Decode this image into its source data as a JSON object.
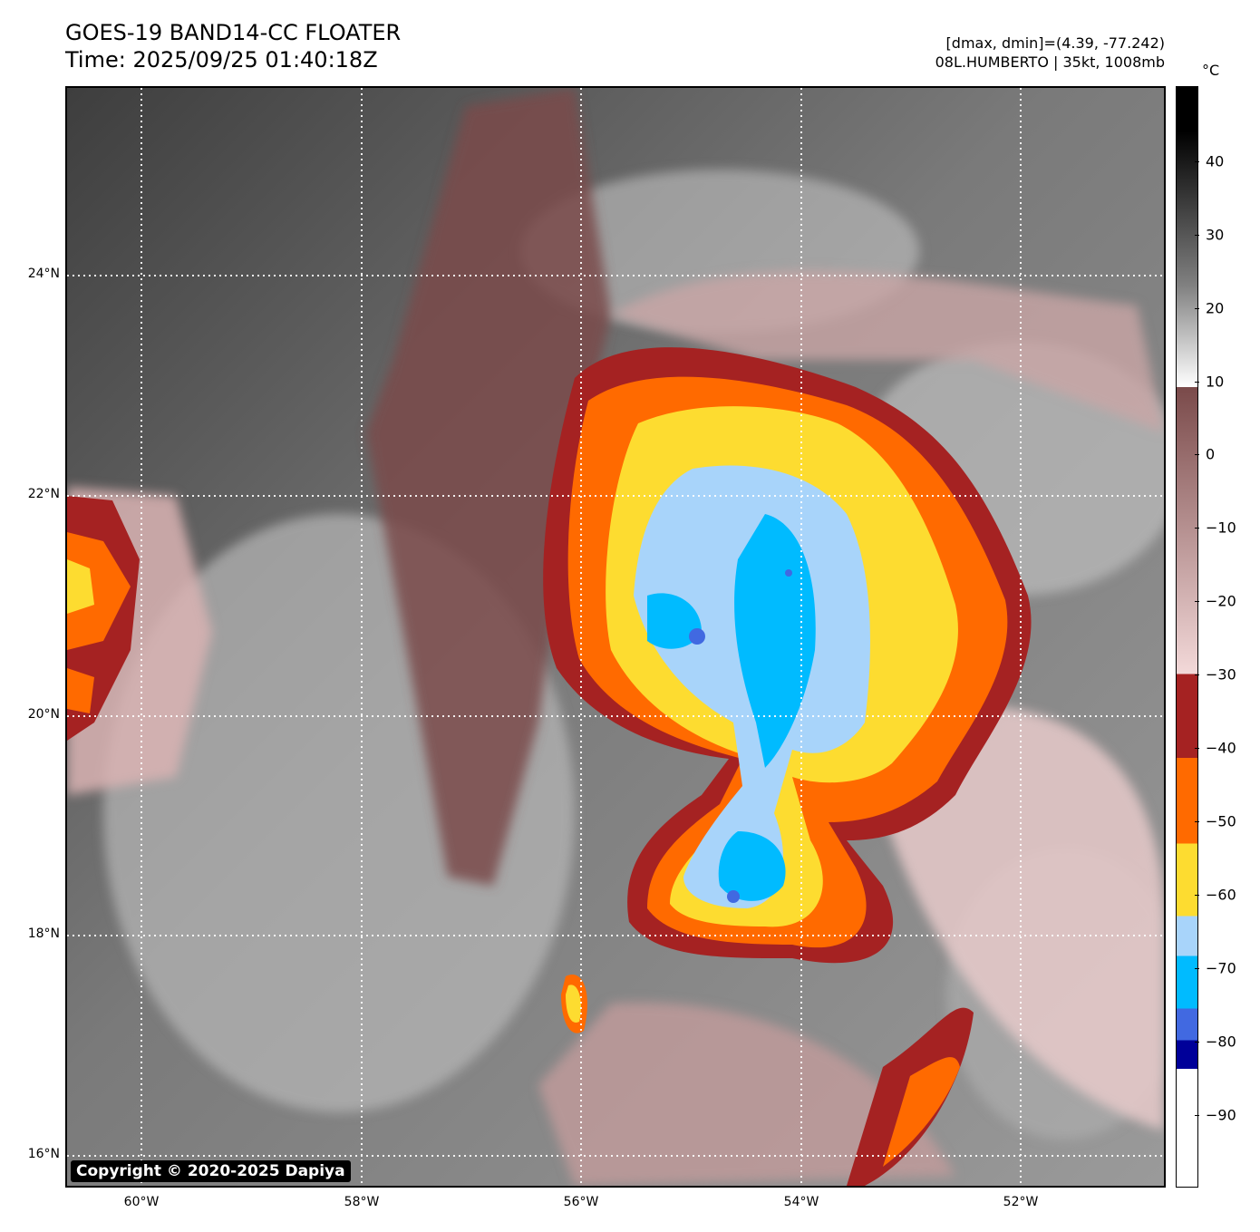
{
  "header": {
    "title_line1": "GOES-19 BAND14-CC FLOATER",
    "title_line2": "Time: 2025/09/25 01:40:18Z",
    "info_line1": "[dmax, dmin]=(4.39, -77.242)",
    "info_line2": "08L.HUMBERTO | 35kt, 1008mb"
  },
  "map": {
    "copyright": "Copyright © 2020-2025 Dapiya",
    "lat_labels": [
      "24°N",
      "22°N",
      "20°N",
      "18°N",
      "16°N"
    ],
    "lon_labels": [
      "60°W",
      "58°W",
      "56°W",
      "54°W",
      "52°W"
    ]
  },
  "colorbar": {
    "unit": "°C",
    "ticks": [
      "40",
      "30",
      "20",
      "10",
      "0",
      "−10",
      "−20",
      "−30",
      "−40",
      "−50",
      "−60",
      "−70",
      "−80",
      "−90"
    ],
    "colors": {
      "warm_black": "#000000",
      "gray_mid": "#808080",
      "white": "#ffffff",
      "brown_dark": "#7a4a4a",
      "pink_light": "#f3d9d9",
      "dark_red": "#a52222",
      "orange": "#ff6a00",
      "yellow": "#fddc30",
      "light_blue": "#a8d4fa",
      "cyan": "#00bbff",
      "royal_blue": "#4169e1",
      "navy": "#000099"
    }
  }
}
